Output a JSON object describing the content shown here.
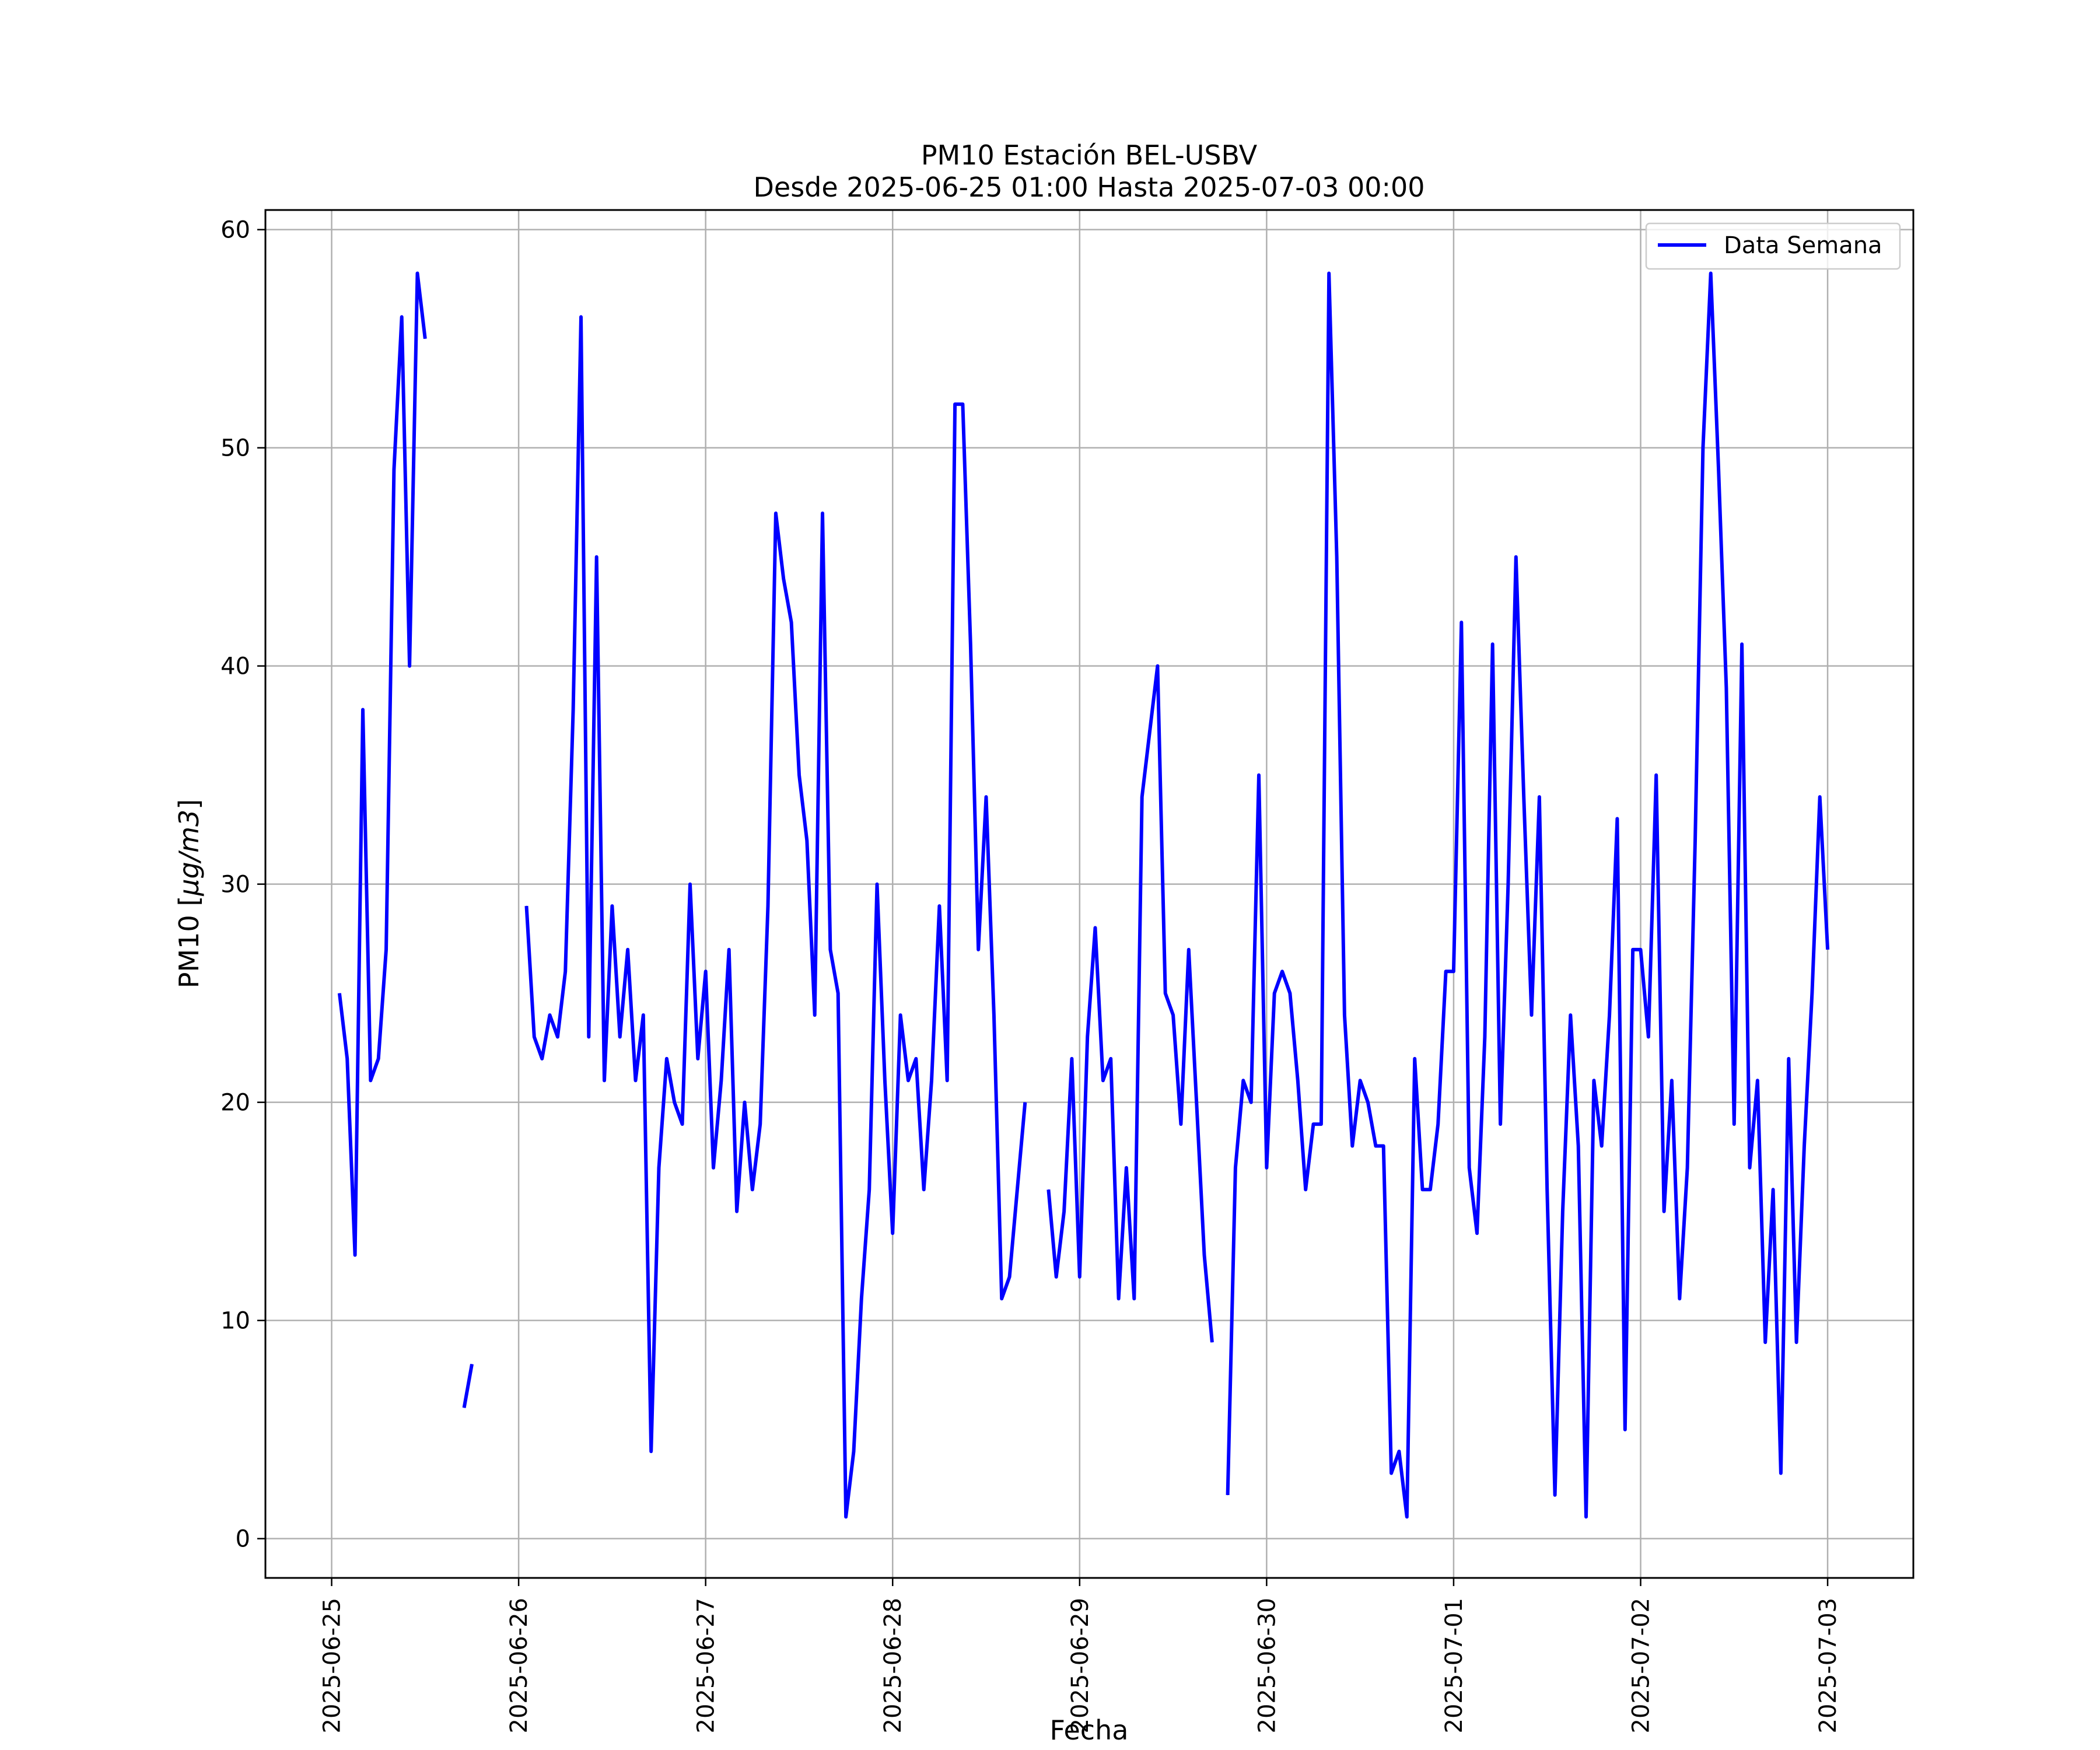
{
  "chart_data": {
    "type": "line",
    "title": "PM10 Estación BEL-USBV",
    "subtitle": "Desde 2025-06-25 01:00 Hasta 2025-07-03 00:00",
    "xlabel": "Fecha",
    "ylabel_prefix": "PM10 [",
    "ylabel_unit": "μg/m3",
    "ylabel_suffix": "]",
    "grid": true,
    "legend_position": "top-right",
    "line_color": "#0000ff",
    "x_ticks": [
      "2025-06-25",
      "2025-06-26",
      "2025-06-27",
      "2025-06-28",
      "2025-06-29",
      "2025-06-30",
      "2025-07-01",
      "2025-07-02",
      "2025-07-03"
    ],
    "y_ticks": [
      0,
      10,
      20,
      30,
      40,
      50,
      60
    ],
    "ylim": [
      -1.8,
      60.9
    ],
    "xlim": [
      "2025-06-24 15:30",
      "2025-07-03 11:00"
    ],
    "series": [
      {
        "name": "Data Semana",
        "points": [
          [
            "2025-06-25 01:00",
            25
          ],
          [
            "2025-06-25 02:00",
            22
          ],
          [
            "2025-06-25 03:00",
            13
          ],
          [
            "2025-06-25 04:00",
            38
          ],
          [
            "2025-06-25 05:00",
            21
          ],
          [
            "2025-06-25 06:00",
            22
          ],
          [
            "2025-06-25 07:00",
            27
          ],
          [
            "2025-06-25 08:00",
            49
          ],
          [
            "2025-06-25 09:00",
            56
          ],
          [
            "2025-06-25 10:00",
            40
          ],
          [
            "2025-06-25 11:00",
            58
          ],
          [
            "2025-06-25 12:00",
            55
          ],
          [
            "2025-06-25 13:00",
            null
          ],
          [
            "2025-06-25 14:00",
            null
          ],
          [
            "2025-06-25 15:00",
            null
          ],
          [
            "2025-06-25 16:00",
            null
          ],
          [
            "2025-06-25 17:00",
            6
          ],
          [
            "2025-06-25 18:00",
            8
          ],
          [
            "2025-06-25 19:00",
            null
          ],
          [
            "2025-06-25 20:00",
            null
          ],
          [
            "2025-06-25 21:00",
            null
          ],
          [
            "2025-06-25 22:00",
            null
          ],
          [
            "2025-06-25 23:00",
            null
          ],
          [
            "2025-06-26 00:00",
            null
          ],
          [
            "2025-06-26 01:00",
            29
          ],
          [
            "2025-06-26 02:00",
            23
          ],
          [
            "2025-06-26 03:00",
            22
          ],
          [
            "2025-06-26 04:00",
            24
          ],
          [
            "2025-06-26 05:00",
            23
          ],
          [
            "2025-06-26 06:00",
            26
          ],
          [
            "2025-06-26 07:00",
            38
          ],
          [
            "2025-06-26 08:00",
            56
          ],
          [
            "2025-06-26 09:00",
            23
          ],
          [
            "2025-06-26 10:00",
            45
          ],
          [
            "2025-06-26 11:00",
            21
          ],
          [
            "2025-06-26 12:00",
            29
          ],
          [
            "2025-06-26 13:00",
            23
          ],
          [
            "2025-06-26 14:00",
            27
          ],
          [
            "2025-06-26 15:00",
            21
          ],
          [
            "2025-06-26 16:00",
            24
          ],
          [
            "2025-06-26 17:00",
            4
          ],
          [
            "2025-06-26 18:00",
            17
          ],
          [
            "2025-06-26 19:00",
            22
          ],
          [
            "2025-06-26 20:00",
            20
          ],
          [
            "2025-06-26 21:00",
            19
          ],
          [
            "2025-06-26 22:00",
            30
          ],
          [
            "2025-06-26 23:00",
            22
          ],
          [
            "2025-06-27 00:00",
            26
          ],
          [
            "2025-06-27 01:00",
            17
          ],
          [
            "2025-06-27 02:00",
            21
          ],
          [
            "2025-06-27 03:00",
            27
          ],
          [
            "2025-06-27 04:00",
            15
          ],
          [
            "2025-06-27 05:00",
            20
          ],
          [
            "2025-06-27 06:00",
            16
          ],
          [
            "2025-06-27 07:00",
            19
          ],
          [
            "2025-06-27 08:00",
            29
          ],
          [
            "2025-06-27 09:00",
            47
          ],
          [
            "2025-06-27 10:00",
            44
          ],
          [
            "2025-06-27 11:00",
            42
          ],
          [
            "2025-06-27 12:00",
            35
          ],
          [
            "2025-06-27 13:00",
            32
          ],
          [
            "2025-06-27 14:00",
            24
          ],
          [
            "2025-06-27 15:00",
            47
          ],
          [
            "2025-06-27 16:00",
            27
          ],
          [
            "2025-06-27 17:00",
            25
          ],
          [
            "2025-06-27 18:00",
            1
          ],
          [
            "2025-06-27 19:00",
            4
          ],
          [
            "2025-06-27 20:00",
            11
          ],
          [
            "2025-06-27 21:00",
            16
          ],
          [
            "2025-06-27 22:00",
            30
          ],
          [
            "2025-06-27 23:00",
            21
          ],
          [
            "2025-06-28 00:00",
            14
          ],
          [
            "2025-06-28 01:00",
            24
          ],
          [
            "2025-06-28 02:00",
            21
          ],
          [
            "2025-06-28 03:00",
            22
          ],
          [
            "2025-06-28 04:00",
            16
          ],
          [
            "2025-06-28 05:00",
            21
          ],
          [
            "2025-06-28 06:00",
            29
          ],
          [
            "2025-06-28 07:00",
            21
          ],
          [
            "2025-06-28 08:00",
            52
          ],
          [
            "2025-06-28 09:00",
            52
          ],
          [
            "2025-06-28 10:00",
            41
          ],
          [
            "2025-06-28 11:00",
            27
          ],
          [
            "2025-06-28 12:00",
            34
          ],
          [
            "2025-06-28 13:00",
            24
          ],
          [
            "2025-06-28 14:00",
            11
          ],
          [
            "2025-06-28 15:00",
            12
          ],
          [
            "2025-06-28 16:00",
            16
          ],
          [
            "2025-06-28 17:00",
            20
          ],
          [
            "2025-06-28 18:00",
            null
          ],
          [
            "2025-06-28 19:00",
            null
          ],
          [
            "2025-06-28 20:00",
            16
          ],
          [
            "2025-06-28 21:00",
            12
          ],
          [
            "2025-06-28 22:00",
            15
          ],
          [
            "2025-06-28 23:00",
            22
          ],
          [
            "2025-06-29 00:00",
            12
          ],
          [
            "2025-06-29 01:00",
            23
          ],
          [
            "2025-06-29 02:00",
            28
          ],
          [
            "2025-06-29 03:00",
            21
          ],
          [
            "2025-06-29 04:00",
            22
          ],
          [
            "2025-06-29 05:00",
            11
          ],
          [
            "2025-06-29 06:00",
            17
          ],
          [
            "2025-06-29 07:00",
            11
          ],
          [
            "2025-06-29 08:00",
            34
          ],
          [
            "2025-06-29 09:00",
            37
          ],
          [
            "2025-06-29 10:00",
            40
          ],
          [
            "2025-06-29 11:00",
            25
          ],
          [
            "2025-06-29 12:00",
            24
          ],
          [
            "2025-06-29 13:00",
            19
          ],
          [
            "2025-06-29 14:00",
            27
          ],
          [
            "2025-06-29 15:00",
            20
          ],
          [
            "2025-06-29 16:00",
            13
          ],
          [
            "2025-06-29 17:00",
            9
          ],
          [
            "2025-06-29 18:00",
            null
          ],
          [
            "2025-06-29 19:00",
            2
          ],
          [
            "2025-06-29 20:00",
            17
          ],
          [
            "2025-06-29 21:00",
            21
          ],
          [
            "2025-06-29 22:00",
            20
          ],
          [
            "2025-06-29 23:00",
            35
          ],
          [
            "2025-06-30 00:00",
            17
          ],
          [
            "2025-06-30 01:00",
            25
          ],
          [
            "2025-06-30 02:00",
            26
          ],
          [
            "2025-06-30 03:00",
            25
          ],
          [
            "2025-06-30 04:00",
            21
          ],
          [
            "2025-06-30 05:00",
            16
          ],
          [
            "2025-06-30 06:00",
            19
          ],
          [
            "2025-06-30 07:00",
            19
          ],
          [
            "2025-06-30 08:00",
            58
          ],
          [
            "2025-06-30 09:00",
            45
          ],
          [
            "2025-06-30 10:00",
            24
          ],
          [
            "2025-06-30 11:00",
            18
          ],
          [
            "2025-06-30 12:00",
            21
          ],
          [
            "2025-06-30 13:00",
            20
          ],
          [
            "2025-06-30 14:00",
            18
          ],
          [
            "2025-06-30 15:00",
            18
          ],
          [
            "2025-06-30 16:00",
            3
          ],
          [
            "2025-06-30 17:00",
            4
          ],
          [
            "2025-06-30 18:00",
            1
          ],
          [
            "2025-06-30 19:00",
            22
          ],
          [
            "2025-06-30 20:00",
            16
          ],
          [
            "2025-06-30 21:00",
            16
          ],
          [
            "2025-06-30 22:00",
            19
          ],
          [
            "2025-06-30 23:00",
            26
          ],
          [
            "2025-07-01 00:00",
            26
          ],
          [
            "2025-07-01 01:00",
            42
          ],
          [
            "2025-07-01 02:00",
            17
          ],
          [
            "2025-07-01 03:00",
            14
          ],
          [
            "2025-07-01 04:00",
            23
          ],
          [
            "2025-07-01 05:00",
            41
          ],
          [
            "2025-07-01 06:00",
            19
          ],
          [
            "2025-07-01 07:00",
            30
          ],
          [
            "2025-07-01 08:00",
            45
          ],
          [
            "2025-07-01 09:00",
            34
          ],
          [
            "2025-07-01 10:00",
            24
          ],
          [
            "2025-07-01 11:00",
            34
          ],
          [
            "2025-07-01 12:00",
            16
          ],
          [
            "2025-07-01 13:00",
            2
          ],
          [
            "2025-07-01 14:00",
            15
          ],
          [
            "2025-07-01 15:00",
            24
          ],
          [
            "2025-07-01 16:00",
            18
          ],
          [
            "2025-07-01 17:00",
            1
          ],
          [
            "2025-07-01 18:00",
            21
          ],
          [
            "2025-07-01 19:00",
            18
          ],
          [
            "2025-07-01 20:00",
            24
          ],
          [
            "2025-07-01 21:00",
            33
          ],
          [
            "2025-07-01 22:00",
            5
          ],
          [
            "2025-07-01 23:00",
            27
          ],
          [
            "2025-07-02 00:00",
            27
          ],
          [
            "2025-07-02 01:00",
            23
          ],
          [
            "2025-07-02 02:00",
            35
          ],
          [
            "2025-07-02 03:00",
            15
          ],
          [
            "2025-07-02 04:00",
            21
          ],
          [
            "2025-07-02 05:00",
            11
          ],
          [
            "2025-07-02 06:00",
            17
          ],
          [
            "2025-07-02 07:00",
            32
          ],
          [
            "2025-07-02 08:00",
            50
          ],
          [
            "2025-07-02 09:00",
            58
          ],
          [
            "2025-07-02 10:00",
            49
          ],
          [
            "2025-07-02 11:00",
            39
          ],
          [
            "2025-07-02 12:00",
            19
          ],
          [
            "2025-07-02 13:00",
            41
          ],
          [
            "2025-07-02 14:00",
            17
          ],
          [
            "2025-07-02 15:00",
            21
          ],
          [
            "2025-07-02 16:00",
            9
          ],
          [
            "2025-07-02 17:00",
            16
          ],
          [
            "2025-07-02 18:00",
            3
          ],
          [
            "2025-07-02 19:00",
            22
          ],
          [
            "2025-07-02 20:00",
            9
          ],
          [
            "2025-07-02 21:00",
            18
          ],
          [
            "2025-07-02 22:00",
            25
          ],
          [
            "2025-07-02 23:00",
            34
          ],
          [
            "2025-07-03 00:00",
            27
          ]
        ]
      }
    ]
  }
}
